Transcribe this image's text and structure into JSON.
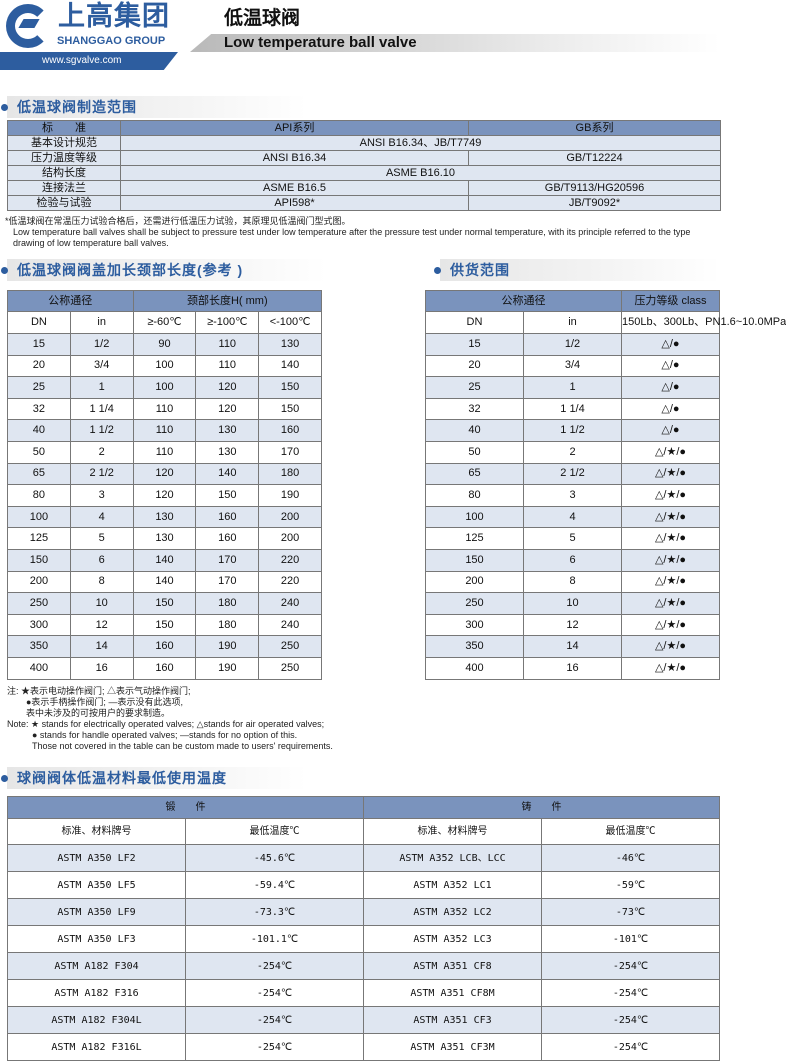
{
  "header": {
    "logo_cn": "上高集团",
    "logo_en": "SHANGGAO GROUP",
    "url": "www.sgvalve.com",
    "title_cn": "低温球阀",
    "title_en": "Low temperature ball valve"
  },
  "colors": {
    "brand": "#2d5d9f",
    "header_fill": "#7a93bd",
    "row_shade": "#dfe6f1"
  },
  "scope": {
    "title": "低温球阀制造范围",
    "headers": [
      "标　　准",
      "API系列",
      "GB系列"
    ],
    "rows": [
      [
        "基本设计规范",
        "ANSI B16.34、JB/T7749"
      ],
      [
        "压力温度等级",
        "ANSI B16.34",
        "GB/T12224"
      ],
      [
        "结构长度",
        "ASME B16.10"
      ],
      [
        "连接法兰",
        "ASME B16.5",
        "GB/T9113/HG20596"
      ],
      [
        "检验与试验",
        "API598*",
        "JB/T9092*"
      ]
    ],
    "note_cn": "*低温球阀在常温压力试验合格后，还需进行低温压力试验，其原理见低温阀门型式图。",
    "note_en": "Low temperature ball valves shall be subject to pressure test under low temperature after the pressure test under normal temperature, with its principle referred to the type drawing of low temperature ball valves."
  },
  "neck": {
    "title": "低温球阀阀盖加长颈部长度(参考 )",
    "h1": "公称通径",
    "h2": "颈部长度H( mm)",
    "sub": [
      "DN",
      "in",
      "≥-60℃",
      "≥-100℃",
      "<-100℃"
    ],
    "rows": [
      [
        "15",
        "1/2",
        "90",
        "110",
        "130"
      ],
      [
        "20",
        "3/4",
        "100",
        "110",
        "140"
      ],
      [
        "25",
        "1",
        "100",
        "120",
        "150"
      ],
      [
        "32",
        "1 1/4",
        "110",
        "120",
        "150"
      ],
      [
        "40",
        "1 1/2",
        "110",
        "130",
        "160"
      ],
      [
        "50",
        "2",
        "110",
        "130",
        "170"
      ],
      [
        "65",
        "2 1/2",
        "120",
        "140",
        "180"
      ],
      [
        "80",
        "3",
        "120",
        "150",
        "190"
      ],
      [
        "100",
        "4",
        "130",
        "160",
        "200"
      ],
      [
        "125",
        "5",
        "130",
        "160",
        "200"
      ],
      [
        "150",
        "6",
        "140",
        "170",
        "220"
      ],
      [
        "200",
        "8",
        "140",
        "170",
        "220"
      ],
      [
        "250",
        "10",
        "150",
        "180",
        "240"
      ],
      [
        "300",
        "12",
        "150",
        "180",
        "240"
      ],
      [
        "350",
        "14",
        "160",
        "190",
        "250"
      ],
      [
        "400",
        "16",
        "160",
        "190",
        "250"
      ]
    ]
  },
  "supply": {
    "title": "供货范围",
    "h1": "公称通径",
    "h2": "压力等级 class",
    "sub": [
      "DN",
      "in",
      "150Lb、300Lb、PN1.6~10.0MPa"
    ],
    "rows": [
      [
        "15",
        "1/2",
        "△/●"
      ],
      [
        "20",
        "3/4",
        "△/●"
      ],
      [
        "25",
        "1",
        "△/●"
      ],
      [
        "32",
        "1 1/4",
        "△/●"
      ],
      [
        "40",
        "1 1/2",
        "△/●"
      ],
      [
        "50",
        "2",
        "△/★/●"
      ],
      [
        "65",
        "2 1/2",
        "△/★/●"
      ],
      [
        "80",
        "3",
        "△/★/●"
      ],
      [
        "100",
        "4",
        "△/★/●"
      ],
      [
        "125",
        "5",
        "△/★/●"
      ],
      [
        "150",
        "6",
        "△/★/●"
      ],
      [
        "200",
        "8",
        "△/★/●"
      ],
      [
        "250",
        "10",
        "△/★/●"
      ],
      [
        "300",
        "12",
        "△/★/●"
      ],
      [
        "350",
        "14",
        "△/★/●"
      ],
      [
        "400",
        "16",
        "△/★/●"
      ]
    ]
  },
  "notes": {
    "cn": [
      "注:  ★表示电动操作阀门;  △表示气动操作阀门;",
      "●表示手柄操作阀门;  —表示没有此选项,",
      "表中未涉及的可按用户的要求制造。"
    ],
    "en": [
      "Note:  ★ stands for electrically operated valves; △stands for air operated valves;",
      "● stands for handle operated valves;      —stands for no option of this.",
      "Those not covered in the table can be custom made to users' requirements."
    ]
  },
  "materials": {
    "title": "球阀阀体低温材料最低使用温度",
    "h1": "锻　　件",
    "h2": "铸　　件",
    "sub": [
      "标准、材料牌号",
      "最低温度℃",
      "标准、材料牌号",
      "最低温度℃"
    ],
    "rows": [
      [
        "ASTM A350 LF2",
        "-45.6℃",
        "ASTM A352 LCB、LCC",
        "-46℃"
      ],
      [
        "ASTM A350 LF5",
        "-59.4℃",
        "ASTM A352 LC1",
        "-59℃"
      ],
      [
        "ASTM A350 LF9",
        "-73.3℃",
        "ASTM A352 LC2",
        "-73℃"
      ],
      [
        "ASTM A350 LF3",
        "-101.1℃",
        "ASTM A352 LC3",
        "-101℃"
      ],
      [
        "ASTM A182 F304",
        "-254℃",
        "ASTM A351 CF8",
        "-254℃"
      ],
      [
        "ASTM A182 F316",
        "-254℃",
        "ASTM A351 CF8M",
        "-254℃"
      ],
      [
        "ASTM A182 F304L",
        "-254℃",
        "ASTM A351 CF3",
        "-254℃"
      ],
      [
        "ASTM A182 F316L",
        "-254℃",
        "ASTM A351 CF3M",
        "-254℃"
      ]
    ]
  }
}
